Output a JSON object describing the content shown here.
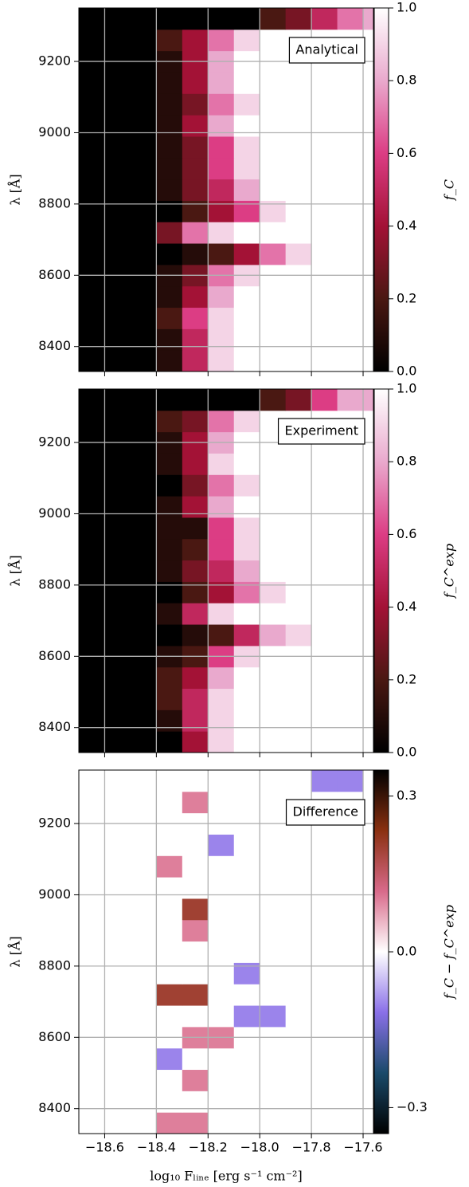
{
  "chart_data": [
    {
      "type": "heatmap",
      "annotation": "Analytical",
      "grid": true,
      "show_xtick_labels": false,
      "x": [
        -18.65,
        -18.55,
        -18.45,
        -18.35,
        -18.25,
        -18.15,
        -18.05,
        -17.95,
        -17.85,
        -17.75,
        -17.65,
        -17.55
      ],
      "y": [
        8360,
        8420,
        8480,
        8540,
        8600,
        8660,
        8720,
        8780,
        8840,
        8900,
        8960,
        9020,
        9080,
        9140,
        9200,
        9260,
        9320
      ],
      "z": [
        [
          0,
          0,
          0,
          0.1,
          0.5,
          0.9,
          1,
          1,
          1,
          1,
          1,
          1
        ],
        [
          0,
          0,
          0,
          0.1,
          0.5,
          0.9,
          1,
          1,
          1,
          1,
          1,
          1
        ],
        [
          0,
          0,
          0,
          0.2,
          0.6,
          0.9,
          1,
          1,
          1,
          1,
          1,
          1
        ],
        [
          0,
          0,
          0,
          0.1,
          0.4,
          0.8,
          1,
          1,
          1,
          1,
          1,
          1
        ],
        [
          0,
          0,
          0,
          0.1,
          0.3,
          0.7,
          0.9,
          1,
          1,
          1,
          1,
          1
        ],
        [
          0,
          0,
          0,
          0,
          0.1,
          0.2,
          0.4,
          0.7,
          0.9,
          1,
          1,
          1
        ],
        [
          0,
          0,
          0,
          0.3,
          0.7,
          0.9,
          1,
          1,
          1,
          1,
          1,
          1
        ],
        [
          0,
          0,
          0,
          0,
          0.2,
          0.4,
          0.6,
          0.9,
          1,
          1,
          1,
          1
        ],
        [
          0,
          0,
          0,
          0.1,
          0.3,
          0.5,
          0.8,
          1,
          1,
          1,
          1,
          1
        ],
        [
          0,
          0,
          0,
          0.1,
          0.3,
          0.6,
          0.9,
          1,
          1,
          1,
          1,
          1
        ],
        [
          0,
          0,
          0,
          0.1,
          0.3,
          0.6,
          0.9,
          1,
          1,
          1,
          1,
          1
        ],
        [
          0,
          0,
          0,
          0.1,
          0.4,
          0.8,
          1,
          1,
          1,
          1,
          1,
          1
        ],
        [
          0,
          0,
          0,
          0.1,
          0.3,
          0.7,
          0.9,
          1,
          1,
          1,
          1,
          1
        ],
        [
          0,
          0,
          0,
          0.1,
          0.4,
          0.8,
          1,
          1,
          1,
          1,
          1,
          1
        ],
        [
          0,
          0,
          0,
          0.1,
          0.4,
          0.8,
          1,
          1,
          1,
          1,
          1,
          1
        ],
        [
          0,
          0,
          0,
          0.2,
          0.4,
          0.7,
          0.9,
          1,
          1,
          1,
          1,
          1
        ],
        [
          0,
          0,
          0,
          0,
          0,
          0,
          0,
          0.2,
          0.3,
          0.5,
          0.7,
          0.8
        ]
      ],
      "xlim": [
        -18.7,
        -17.56
      ],
      "ylim": [
        8330,
        9350
      ],
      "xticks": [
        -18.6,
        -18.4,
        -18.2,
        -18.0,
        -17.8,
        -17.6
      ],
      "yticks": [
        8400,
        8600,
        8800,
        9000,
        9200
      ],
      "ylabel": "λ [Å]",
      "colorbar": {
        "label": "f_C",
        "lim": [
          0,
          1
        ],
        "ticks": [
          {
            "value": 0,
            "label": "0.0"
          },
          0.2,
          0.4,
          0.6,
          0.8,
          {
            "value": 1,
            "label": "1.0"
          }
        ],
        "colors": [
          "#000000",
          "#4a1812",
          "#a31236",
          "#dc3d84",
          "#e9a9cd",
          "#ffffff"
        ]
      }
    },
    {
      "type": "heatmap",
      "annotation": "Experiment",
      "grid": true,
      "show_xtick_labels": false,
      "x": [
        -18.65,
        -18.55,
        -18.45,
        -18.35,
        -18.25,
        -18.15,
        -18.05,
        -17.95,
        -17.85,
        -17.75,
        -17.65,
        -17.55
      ],
      "y": [
        8360,
        8420,
        8480,
        8540,
        8600,
        8660,
        8720,
        8780,
        8840,
        8900,
        8960,
        9020,
        9080,
        9140,
        9200,
        9260,
        9320
      ],
      "z": [
        [
          0,
          0,
          0,
          0,
          0.4,
          0.9,
          1,
          1,
          1,
          1,
          1,
          1
        ],
        [
          0,
          0,
          0,
          0.1,
          0.5,
          0.9,
          1,
          1,
          1,
          1,
          1,
          1
        ],
        [
          0,
          0,
          0,
          0.2,
          0.5,
          0.9,
          1,
          1,
          1,
          1,
          1,
          1
        ],
        [
          0,
          0,
          0,
          0.2,
          0.4,
          0.8,
          1,
          1,
          1,
          1,
          1,
          1
        ],
        [
          0,
          0,
          0,
          0.1,
          0.2,
          0.6,
          0.9,
          1,
          1,
          1,
          1,
          1
        ],
        [
          0,
          0,
          0,
          0,
          0.1,
          0.2,
          0.5,
          0.8,
          0.9,
          1,
          1,
          1
        ],
        [
          0,
          0,
          0,
          0.1,
          0.5,
          0.9,
          1,
          1,
          1,
          1,
          1,
          1
        ],
        [
          0,
          0,
          0,
          0,
          0.2,
          0.4,
          0.7,
          0.9,
          1,
          1,
          1,
          1
        ],
        [
          0,
          0,
          0,
          0.1,
          0.3,
          0.5,
          0.8,
          1,
          1,
          1,
          1,
          1
        ],
        [
          0,
          0,
          0,
          0.1,
          0.2,
          0.6,
          0.9,
          1,
          1,
          1,
          1,
          1
        ],
        [
          0,
          0,
          0,
          0.1,
          0.1,
          0.6,
          0.9,
          1,
          1,
          1,
          1,
          1
        ],
        [
          0,
          0,
          0,
          0.1,
          0.4,
          0.8,
          1,
          1,
          1,
          1,
          1,
          1
        ],
        [
          0,
          0,
          0,
          0,
          0.3,
          0.7,
          0.9,
          1,
          1,
          1,
          1,
          1
        ],
        [
          0,
          0,
          0,
          0.1,
          0.4,
          0.9,
          1,
          1,
          1,
          1,
          1,
          1
        ],
        [
          0,
          0,
          0,
          0.1,
          0.4,
          0.8,
          1,
          1,
          1,
          1,
          1,
          1
        ],
        [
          0,
          0,
          0,
          0.2,
          0.3,
          0.7,
          0.9,
          1,
          1,
          1,
          1,
          1
        ],
        [
          0,
          0,
          0,
          0,
          0,
          0,
          0,
          0.2,
          0.3,
          0.6,
          0.8,
          0.8
        ]
      ],
      "xlim": [
        -18.7,
        -17.56
      ],
      "ylim": [
        8330,
        9350
      ],
      "xticks": [
        -18.6,
        -18.4,
        -18.2,
        -18.0,
        -17.8,
        -17.6
      ],
      "yticks": [
        8400,
        8600,
        8800,
        9000,
        9200
      ],
      "ylabel": "λ [Å]",
      "colorbar": {
        "label": "f_C^exp",
        "lim": [
          0,
          1
        ],
        "ticks": [
          {
            "value": 0,
            "label": "0.0"
          },
          0.2,
          0.4,
          0.6,
          0.8,
          {
            "value": 1,
            "label": "1.0"
          }
        ],
        "colors": [
          "#000000",
          "#4a1812",
          "#a31236",
          "#dc3d84",
          "#e9a9cd",
          "#ffffff"
        ]
      }
    },
    {
      "type": "heatmap",
      "annotation": "Difference",
      "grid": true,
      "show_xtick_labels": true,
      "x": [
        -18.65,
        -18.55,
        -18.45,
        -18.35,
        -18.25,
        -18.15,
        -18.05,
        -17.95,
        -17.85,
        -17.75,
        -17.65,
        -17.55
      ],
      "y": [
        8360,
        8420,
        8480,
        8540,
        8600,
        8660,
        8720,
        8780,
        8840,
        8900,
        8960,
        9020,
        9080,
        9140,
        9200,
        9260,
        9320
      ],
      "z": [
        [
          0,
          0,
          0,
          0.1,
          0.1,
          0,
          0,
          0,
          0,
          0,
          0,
          0
        ],
        [
          0,
          0,
          0,
          0,
          0,
          0,
          0,
          0,
          0,
          0,
          0,
          0
        ],
        [
          0,
          0,
          0,
          0,
          0.1,
          0,
          0,
          0,
          0,
          0,
          0,
          0
        ],
        [
          0,
          0,
          0,
          -0.1,
          0,
          0,
          0,
          0,
          0,
          0,
          0,
          0
        ],
        [
          0,
          0,
          0,
          0,
          0.1,
          0.1,
          0,
          0,
          0,
          0,
          0,
          0
        ],
        [
          0,
          0,
          0,
          0,
          0,
          0,
          -0.1,
          -0.1,
          0,
          0,
          0,
          0
        ],
        [
          0,
          0,
          0,
          0.2,
          0.2,
          0,
          0,
          0,
          0,
          0,
          0,
          0
        ],
        [
          0,
          0,
          0,
          0,
          0,
          0,
          -0.1,
          0,
          0,
          0,
          0,
          0
        ],
        [
          0,
          0,
          0,
          0,
          0,
          0,
          0,
          0,
          0,
          0,
          0,
          0
        ],
        [
          0,
          0,
          0,
          0,
          0.1,
          0,
          0,
          0,
          0,
          0,
          0,
          0
        ],
        [
          0,
          0,
          0,
          0,
          0.2,
          0,
          0,
          0,
          0,
          0,
          0,
          0
        ],
        [
          0,
          0,
          0,
          0,
          0,
          0,
          0,
          0,
          0,
          0,
          0,
          0
        ],
        [
          0,
          0,
          0,
          0.1,
          0,
          0,
          0,
          0,
          0,
          0,
          0,
          0
        ],
        [
          0,
          0,
          0,
          0,
          0,
          -0.1,
          0,
          0,
          0,
          0,
          0,
          0
        ],
        [
          0,
          0,
          0,
          0,
          0,
          0,
          0,
          0,
          0,
          0,
          0,
          0
        ],
        [
          0,
          0,
          0,
          0,
          0.1,
          0,
          0,
          0,
          0,
          0,
          0,
          0
        ],
        [
          0,
          0,
          0,
          0,
          0,
          0,
          0,
          0,
          0,
          -0.1,
          -0.1,
          0
        ]
      ],
      "xlim": [
        -18.7,
        -17.56
      ],
      "ylim": [
        8330,
        9350
      ],
      "xticks": [
        {
          "value": -18.6,
          "label": "−18.6"
        },
        {
          "value": -18.4,
          "label": "−18.4"
        },
        {
          "value": -18.2,
          "label": "−18.2"
        },
        {
          "value": -18.0,
          "label": "−18.0"
        },
        {
          "value": -17.8,
          "label": "−17.8"
        },
        {
          "value": -17.6,
          "label": "−17.6"
        }
      ],
      "yticks": [
        8400,
        8600,
        8800,
        9000,
        9200
      ],
      "xlabel": "log₁₀ Fₗᵢₙₑ [erg s⁻¹ cm⁻²]",
      "ylabel": "λ [Å]",
      "colorbar": {
        "label": "f_C − f_C^exp",
        "lim": [
          -0.35,
          0.35
        ],
        "ticks": [
          {
            "value": -0.3,
            "label": "−0.3"
          },
          {
            "value": 0,
            "label": "0.0"
          },
          0.3
        ],
        "colors": [
          "#000000",
          "#1a4a6a",
          "#8a70e8",
          "#ffffff",
          "#d86a8a",
          "#8a3010",
          "#000000"
        ]
      }
    }
  ]
}
